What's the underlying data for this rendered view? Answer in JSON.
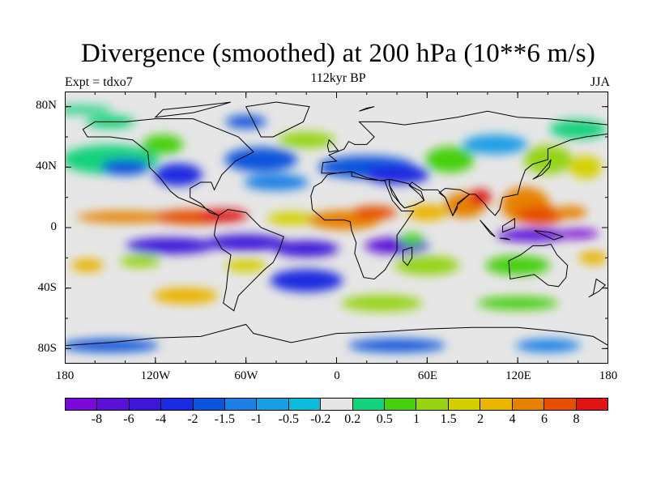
{
  "header": {
    "title": "Divergence (smoothed) at 200 hPa (10**6 m/s)",
    "subtitle": "112kyr BP",
    "left_label": "Expt = tdxo7",
    "right_label": "JJA"
  },
  "chart_data": {
    "type": "heatmap",
    "title": "Divergence (smoothed) at 200 hPa (10**6 m/s)",
    "subtitle": "112kyr BP",
    "experiment": "Expt = tdxo7",
    "season": "JJA",
    "projection": "cylindrical equidistant, global",
    "lat_range": [
      -90,
      90
    ],
    "lon_range": [
      -180,
      180
    ],
    "lat_ticks": [
      "80N",
      "40N",
      "0",
      "40S",
      "80S"
    ],
    "lon_ticks": [
      "180",
      "120W",
      "60W",
      "0",
      "60E",
      "120E",
      "180"
    ],
    "colorbar": {
      "labels": [
        "-8",
        "-6",
        "-4",
        "-2",
        "-1.5",
        "-1",
        "-0.5",
        "-0.2",
        "0.2",
        "0.5",
        "1",
        "1.5",
        "2",
        "4",
        "6",
        "8"
      ],
      "colors": [
        "#7b0ad8",
        "#5a10d6",
        "#3e16d8",
        "#1a2ae0",
        "#0a55dc",
        "#1e80e6",
        "#1a9ee6",
        "#0cbcd8",
        "#e6e6e6",
        "#12d27c",
        "#46d00c",
        "#96d412",
        "#d4d000",
        "#eab400",
        "#e68200",
        "#e64e00",
        "#e01414"
      ]
    },
    "fields": [
      {
        "lon": [
          -180,
          180
        ],
        "lat": [
          2,
          14
        ],
        "level": "4 to 8",
        "description": "strong divergence band over tropical east Pacific and Central America"
      },
      {
        "lon": [
          -180,
          180
        ],
        "lat": [
          -22,
          -4
        ],
        "level": "-4 to -2",
        "description": "convergence band south of the equator"
      },
      {
        "lon": [
          -20,
          50
        ],
        "lat": [
          0,
          15
        ],
        "level": "4 to 6",
        "description": "divergence over West/Central Africa"
      },
      {
        "lon": [
          75,
          150
        ],
        "lat": [
          -5,
          30
        ],
        "level": "4 to 8",
        "description": "strong divergence over South and Southeast Asian monsoon region"
      },
      {
        "lon": [
          100,
          180
        ],
        "lat": [
          -12,
          -2
        ],
        "level": "-6 to -4",
        "description": "convergence over western Pacific / Indonesia south"
      },
      {
        "lon": [
          20,
          75
        ],
        "lat": [
          25,
          50
        ],
        "level": "-2 to -1",
        "description": "convergence over Mediterranean and Middle East"
      },
      {
        "lon": [
          -180,
          180
        ],
        "lat": [
          -60,
          -35
        ],
        "level": "0.5 to 1.5",
        "description": "weak divergence over Southern Ocean"
      },
      {
        "lon": [
          -180,
          180
        ],
        "lat": [
          -85,
          -70
        ],
        "level": "-1 to -0.5",
        "description": "weak convergence near Antarctic margin"
      }
    ]
  }
}
